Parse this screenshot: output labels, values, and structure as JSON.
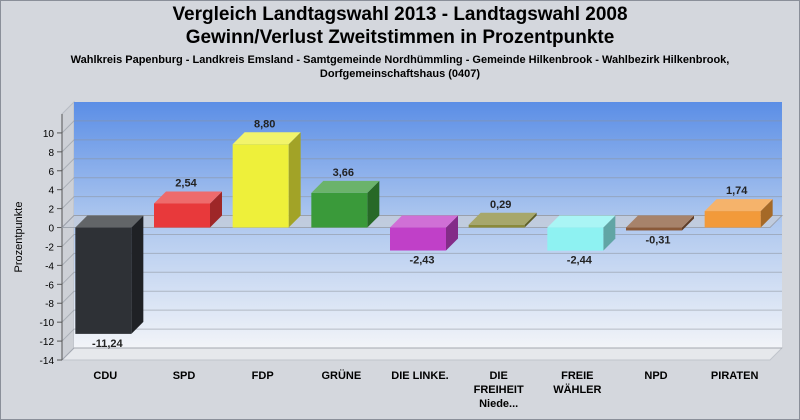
{
  "header": {
    "title_line1": "Vergleich Landtagswahl 2013 - Landtagswahl 2008",
    "title_line2": "Gewinn/Verlust Zweitstimmen in Prozentpunkte",
    "subtitle_line1": "Wahlkreis Papenburg - Landkreis Emsland - Samtgemeinde Nordhümmling - Gemeinde Hilkenbrook - Wahlbezirk Hilkenbrook,",
    "subtitle_line2": "Dorfgemeinschaftshaus (0407)"
  },
  "chart_data": {
    "type": "bar",
    "title": "Vergleich Landtagswahl 2013 - Landtagswahl 2008 Gewinn/Verlust Zweitstimmen in Prozentpunkte",
    "xlabel": "",
    "ylabel": "Prozentpunkte",
    "ylim": [
      -14,
      12
    ],
    "yticks": [
      10,
      8,
      6,
      4,
      2,
      0,
      -2,
      -4,
      -6,
      -8,
      -10,
      -12,
      -14
    ],
    "grid": true,
    "categories": [
      [
        "CDU"
      ],
      [
        "SPD"
      ],
      [
        "FDP"
      ],
      [
        "GRÜNE"
      ],
      [
        "DIE LINKE."
      ],
      [
        "DIE",
        "FREIHEIT",
        "Niede..."
      ],
      [
        "FREIE",
        "WÄHLER"
      ],
      [
        "NPD"
      ],
      [
        "PIRATEN"
      ]
    ],
    "values": [
      -11.24,
      2.54,
      8.8,
      3.66,
      -2.43,
      0.29,
      -2.44,
      -0.31,
      1.74
    ],
    "value_labels": [
      "-11,24",
      "2,54",
      "8,80",
      "3,66",
      "-2,43",
      "0,29",
      "-2,44",
      "-0,31",
      "1,74"
    ],
    "colors": [
      "#2e3136",
      "#e8393b",
      "#eef03a",
      "#3a9a3a",
      "#c040c8",
      "#8a8a3a",
      "#8ef2f2",
      "#8a5a3a",
      "#f29a3a"
    ]
  }
}
